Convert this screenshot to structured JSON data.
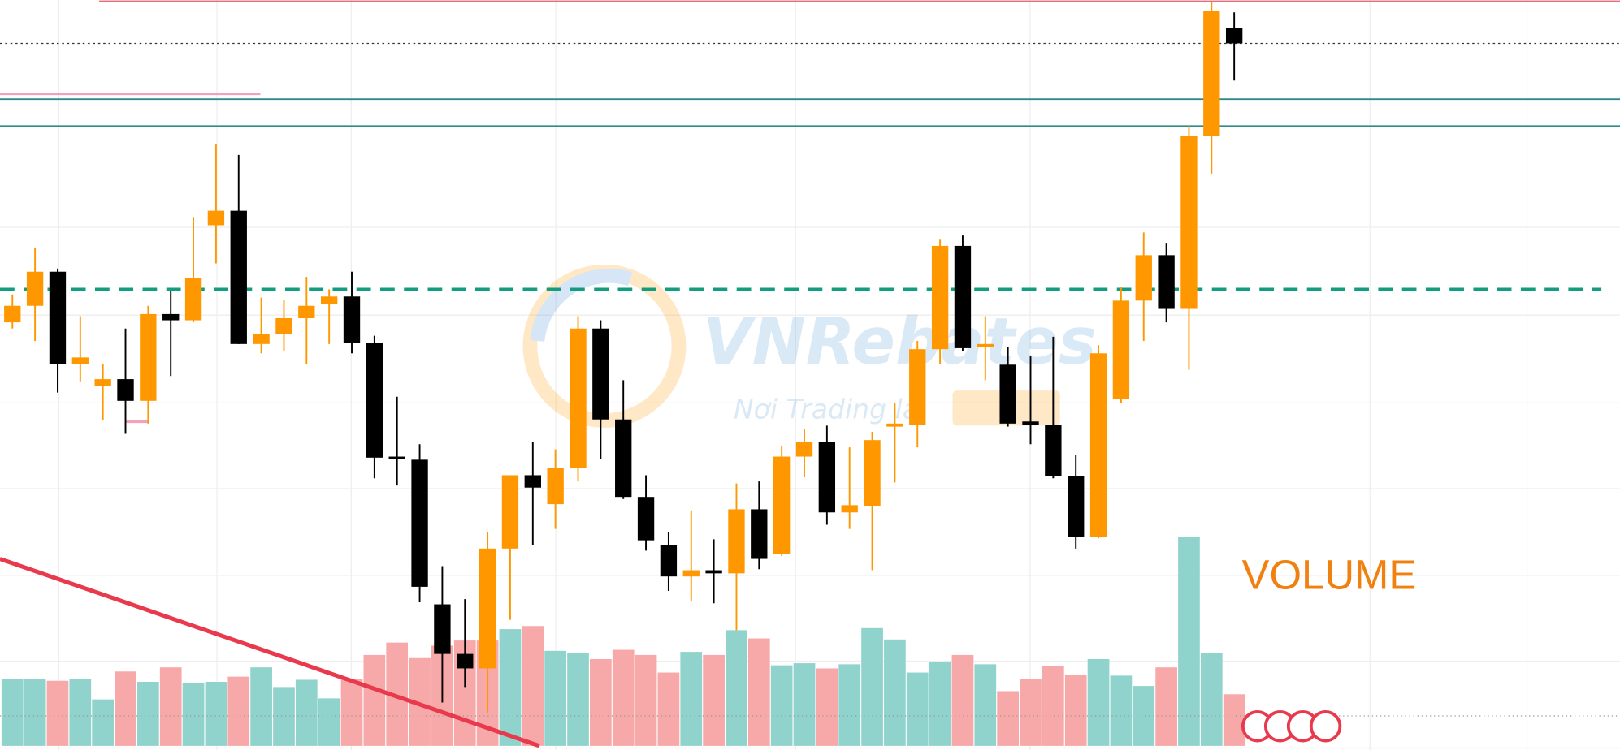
{
  "chart_data": [
    {
      "type": "candlestick",
      "ylim": [
        0,
        726
      ],
      "color_up": "#ff9800",
      "color_down": "#000000",
      "open": [
        414,
        430,
        463,
        374,
        352,
        359,
        338,
        422,
        416,
        508,
        522,
        393,
        403,
        418,
        432,
        439,
        394,
        284,
        281,
        141,
        93,
        79,
        195,
        266,
        238,
        273,
        408,
        320,
        245,
        198,
        168,
        174,
        171,
        233,
        190,
        284,
        298,
        230,
        236,
        313,
        315,
        388,
        488,
        390,
        373,
        318,
        315,
        265,
        206,
        340,
        435,
        479,
        427,
        594,
        699
      ],
      "high": [
        441,
        486,
        466,
        420,
        374,
        408,
        430,
        444,
        516,
        586,
        576,
        438,
        436,
        458,
        446,
        463,
        401,
        342,
        296,
        178,
        146,
        211,
        266,
        298,
        291,
        420,
        416,
        358,
        266,
        211,
        232,
        204,
        258,
        260,
        294,
        311,
        314,
        293,
        308,
        336,
        396,
        494,
        498,
        420,
        390,
        381,
        400,
        286,
        392,
        448,
        501,
        491,
        604,
        724,
        714
      ],
      "low": [
        408,
        396,
        346,
        356,
        319,
        306,
        316,
        362,
        414,
        471,
        393,
        384,
        386,
        374,
        393,
        384,
        263,
        256,
        143,
        46,
        61,
        36,
        126,
        198,
        214,
        260,
        282,
        243,
        193,
        154,
        144,
        142,
        116,
        175,
        188,
        264,
        218,
        214,
        174,
        259,
        293,
        374,
        386,
        358,
        313,
        296,
        263,
        195,
        205,
        336,
        396,
        414,
        368,
        558,
        648
      ],
      "close": [
        430,
        463,
        374,
        380,
        359,
        338,
        422,
        416,
        457,
        522,
        393,
        403,
        418,
        430,
        439,
        394,
        283,
        282,
        158,
        93,
        79,
        195,
        266,
        254,
        273,
        408,
        320,
        245,
        203,
        168,
        174,
        171,
        233,
        185,
        284,
        298,
        230,
        237,
        300,
        316,
        388,
        488,
        389,
        393,
        316,
        315,
        265,
        206,
        384,
        435,
        479,
        427,
        594,
        715,
        684
      ]
    },
    {
      "type": "bar",
      "title": "VOLUME",
      "ylim": [
        -4,
        722
      ],
      "values": [
        65,
        65,
        63,
        65,
        45,
        72,
        62,
        76,
        61,
        62,
        67,
        76,
        57,
        64,
        46,
        65,
        88,
        100,
        85,
        97,
        102,
        102,
        113,
        116,
        92,
        90,
        84,
        93,
        88,
        71,
        91,
        88,
        112,
        104,
        78,
        80,
        75,
        79,
        114,
        103,
        71,
        81,
        88,
        79,
        53,
        65,
        77,
        69,
        84,
        68,
        58,
        76,
        202,
        90,
        50
      ],
      "colors": [
        "#8fd3cc",
        "#8fd3cc",
        "#f7a8a8",
        "#8fd3cc",
        "#8fd3cc",
        "#f7a8a8",
        "#8fd3cc",
        "#f7a8a8",
        "#8fd3cc",
        "#8fd3cc",
        "#f7a8a8",
        "#8fd3cc",
        "#8fd3cc",
        "#8fd3cc",
        "#8fd3cc",
        "#f7a8a8",
        "#f7a8a8",
        "#f7a8a8",
        "#f7a8a8",
        "#f7a8a8",
        "#f7a8a8",
        "#f7a8a8",
        "#8fd3cc",
        "#f7a8a8",
        "#8fd3cc",
        "#8fd3cc",
        "#f7a8a8",
        "#f7a8a8",
        "#f7a8a8",
        "#f7a8a8",
        "#8fd3cc",
        "#f7a8a8",
        "#8fd3cc",
        "#f7a8a8",
        "#8fd3cc",
        "#8fd3cc",
        "#f7a8a8",
        "#8fd3cc",
        "#8fd3cc",
        "#8fd3cc",
        "#8fd3cc",
        "#8fd3cc",
        "#f7a8a8",
        "#8fd3cc",
        "#f7a8a8",
        "#f7a8a8",
        "#f7a8a8",
        "#f7a8a8",
        "#8fd3cc",
        "#8fd3cc",
        "#8fd3cc",
        "#f7a8a8",
        "#8fd3cc",
        "#8fd3cc",
        "#f7a8a8"
      ]
    }
  ],
  "watermark": {
    "brand": "VNRebates",
    "slogan": "Nơi Trading là"
  }
}
